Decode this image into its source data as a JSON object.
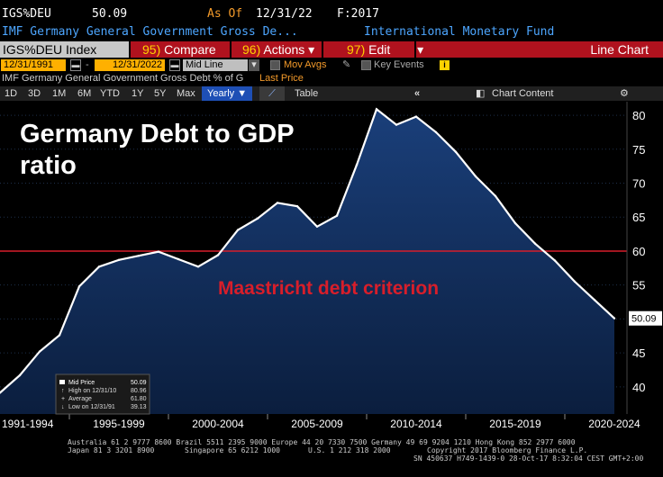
{
  "header": {
    "ticker": "IGS%DEU",
    "value": "50.09",
    "as_of_label": "As Of",
    "as_of_date": "12/31/22",
    "freq": "F:2017",
    "description": "IMF Germany General Government Gross De...",
    "source": "International Monetary Fund"
  },
  "toolbar": {
    "index_label": "IGS%DEU Index",
    "compare_num": "95)",
    "compare_label": "Compare",
    "actions_num": "96)",
    "actions_label": "Actions",
    "edit_num": "97)",
    "edit_label": "Edit",
    "chart_type": "Line Chart"
  },
  "controls": {
    "start_date": "12/31/1991",
    "end_date": "12/31/2022",
    "line_mode": "Mid Line",
    "mov_avgs": "Mov Avgs",
    "key_events": "Key Events"
  },
  "legend_line": {
    "series_desc": "IMF Germany General Government Gross Debt % of G",
    "price_label": "Last Price"
  },
  "periods": {
    "items": [
      "1D",
      "3D",
      "1M",
      "6M",
      "YTD",
      "1Y",
      "5Y",
      "Max"
    ],
    "frequency": "Yearly",
    "table_label": "Table",
    "chart_content": "Chart Content"
  },
  "chart_data": {
    "type": "area",
    "title": "Germany Debt to GDP",
    "title_line2": "ratio",
    "x": [
      1991,
      1992,
      1993,
      1994,
      1995,
      1996,
      1997,
      1998,
      1999,
      2000,
      2001,
      2002,
      2003,
      2004,
      2005,
      2006,
      2007,
      2008,
      2009,
      2010,
      2011,
      2012,
      2013,
      2014,
      2015,
      2016,
      2017,
      2018,
      2019,
      2020,
      2021,
      2022
    ],
    "values": [
      39.13,
      41.7,
      45.2,
      47.6,
      54.8,
      57.7,
      58.7,
      59.3,
      59.9,
      58.8,
      57.7,
      59.4,
      63.1,
      64.8,
      67.1,
      66.6,
      63.6,
      65.2,
      72.7,
      80.9,
      78.6,
      79.8,
      77.5,
      74.6,
      71.0,
      68.1,
      64.1,
      61.1,
      58.6,
      55.5,
      52.8,
      50.09
    ],
    "xlabels": [
      "1991-1994",
      "1995-1999",
      "2000-2004",
      "2005-2009",
      "2010-2014",
      "2015-2019",
      "2020-2024"
    ],
    "ylim": [
      36,
      82
    ],
    "yticks": [
      40,
      45,
      50,
      55,
      60,
      65,
      70,
      75,
      80
    ],
    "last_value_label": "50.09",
    "reference_line": {
      "value": 60,
      "label": "Maastricht debt criterion",
      "color": "#d81e2a"
    },
    "stats": {
      "mid_price_label": "Mid Price",
      "mid_price": "50.09",
      "high_label": "High on 12/31/10",
      "high": "80.96",
      "avg_label": "Average",
      "avg": "61.80",
      "low_label": "Low on 12/31/91",
      "low": "39.13"
    },
    "colors": {
      "line": "#ffffff",
      "area_top": "#1a3f7a",
      "area_bottom": "#0b1e3e",
      "ref": "#d81e2a",
      "ticks": "#ffffff"
    }
  },
  "footer": {
    "line1": "Australia 61 2 9777 8600 Brazil 5511 2395 9000 Europe 44 20 7330 7500 Germany 49 69 9204 1210 Hong Kong 852 2977 6000",
    "line2a": "Japan 81 3 3201 8900",
    "line2b": "Singapore 65 6212 1000",
    "line2c": "U.S. 1 212 318 2000",
    "copyright": "Copyright 2017 Bloomberg Finance L.P.",
    "sn": "SN 450637 H749-1439-0 28-Oct-17  8:32:04 CEST GMT+2:00"
  }
}
